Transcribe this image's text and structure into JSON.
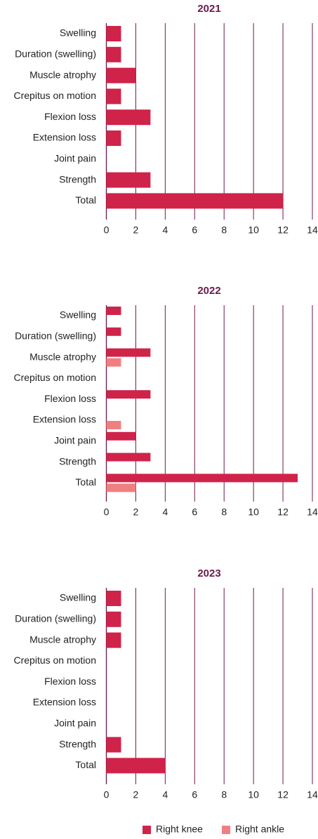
{
  "chart_data": [
    {
      "type": "bar",
      "orientation": "horizontal",
      "title": "2021",
      "categories": [
        "Swelling",
        "Duration (swelling)",
        "Muscle atrophy",
        "Crepitus on motion",
        "Flexion loss",
        "Extension loss",
        "Joint pain",
        "Strength",
        "Total"
      ],
      "series": [
        {
          "name": "Right knee",
          "values": [
            1,
            1,
            2,
            1,
            3,
            1,
            0,
            3,
            12
          ]
        }
      ],
      "xlim": [
        0,
        14
      ],
      "xticks": [
        "0",
        "2",
        "4",
        "6",
        "8",
        "10",
        "12",
        "14"
      ],
      "grid": "vertical"
    },
    {
      "type": "bar",
      "orientation": "horizontal",
      "title": "2022",
      "categories": [
        "Swelling",
        "Duration (swelling)",
        "Muscle atrophy",
        "Crepitus on motion",
        "Flexion loss",
        "Extension loss",
        "Joint pain",
        "Strength",
        "Total"
      ],
      "series": [
        {
          "name": "Right knee",
          "values": [
            1,
            1,
            3,
            0,
            3,
            0,
            2,
            3,
            13
          ]
        },
        {
          "name": "Right ankle",
          "values": [
            0,
            0,
            1,
            0,
            0,
            1,
            0,
            0,
            2
          ]
        }
      ],
      "xlim": [
        0,
        14
      ],
      "xticks": [
        "0",
        "2",
        "4",
        "6",
        "8",
        "10",
        "12",
        "14"
      ],
      "grid": "vertical"
    },
    {
      "type": "bar",
      "orientation": "horizontal",
      "title": "2023",
      "categories": [
        "Swelling",
        "Duration (swelling)",
        "Muscle atrophy",
        "Crepitus on motion",
        "Flexion loss",
        "Extension loss",
        "Joint pain",
        "Strength",
        "Total"
      ],
      "series": [
        {
          "name": "Right knee",
          "values": [
            1,
            1,
            1,
            0,
            0,
            0,
            0,
            1,
            4
          ]
        }
      ],
      "xlim": [
        0,
        14
      ],
      "xticks": [
        "0",
        "2",
        "4",
        "6",
        "8",
        "10",
        "12",
        "14"
      ],
      "grid": "vertical"
    }
  ],
  "legend": {
    "position": "bottom",
    "items": [
      {
        "label": "Right knee",
        "color": "#d0234a"
      },
      {
        "label": "Right ankle",
        "color": "#f08080"
      }
    ]
  },
  "colors": {
    "title": "#6b1a4b",
    "grid": "#6b1a4b",
    "text": "#222222"
  }
}
